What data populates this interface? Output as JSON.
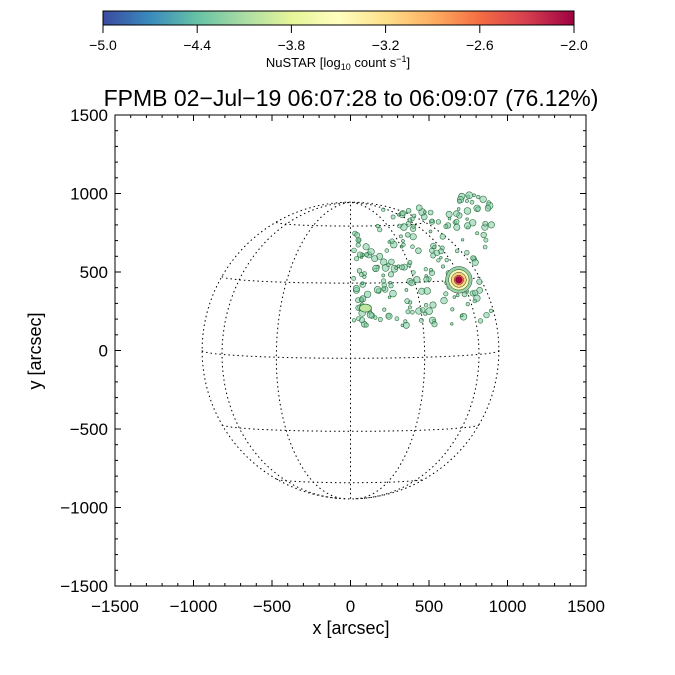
{
  "chart_data": {
    "type": "heatmap",
    "title": "FPMB 02−Jul−19 06:07:28 to 06:09:07 (76.12%)",
    "xlabel": "x [arcsec]",
    "ylabel": "y [arcsec]",
    "xlim": [
      -1500,
      1500
    ],
    "ylim": [
      -1500,
      1500
    ],
    "xticks": [
      -1500,
      -1000,
      -500,
      0,
      500,
      1000,
      1500
    ],
    "yticks": [
      -1500,
      -1000,
      -500,
      0,
      500,
      1000,
      1500
    ],
    "xtick_labels": [
      "−1500",
      "−1000",
      "−500",
      "0",
      "500",
      "1000",
      "1500"
    ],
    "ytick_labels": [
      "−1500",
      "−1000",
      "−500",
      "0",
      "500",
      "1000",
      "1500"
    ],
    "solar_disk": {
      "center": [
        0,
        0
      ],
      "radius": 945,
      "grid": "dotted"
    },
    "colorbar": {
      "label_prefix": "NuSTAR [log",
      "label_sub": "10",
      "label_mid": " count s",
      "label_sup": "−1",
      "label_suffix": "]",
      "range": [
        -5.0,
        -2.0
      ],
      "ticks": [
        -5.0,
        -4.4,
        -3.8,
        -3.2,
        -2.6,
        -2.0
      ],
      "tick_labels": [
        "−5.0",
        "−4.4",
        "−3.8",
        "−3.2",
        "−2.6",
        "−2.0"
      ],
      "colors": [
        "#3b4aa0",
        "#3a8bbd",
        "#66c2a5",
        "#abdda4",
        "#e6f598",
        "#ffffbf",
        "#fee08b",
        "#fdae61",
        "#f46d43",
        "#d53e4f",
        "#9e0142"
      ]
    },
    "source": {
      "x": 690,
      "y": 450,
      "peak_log_rate": -2.0,
      "levels": [
        {
          "log_rate": -4.2,
          "radius": 85
        },
        {
          "log_rate": -3.6,
          "radius": 65
        },
        {
          "log_rate": -3.1,
          "radius": 48
        },
        {
          "log_rate": -2.6,
          "radius": 30
        },
        {
          "log_rate": -2.2,
          "radius": 16
        }
      ]
    },
    "faint_region": {
      "x_range": [
        20,
        900
      ],
      "y_range": [
        160,
        990
      ],
      "log_rate": -4.3
    },
    "secondary_patch": {
      "x": 95,
      "y": 270,
      "log_rate": -4.0
    }
  }
}
